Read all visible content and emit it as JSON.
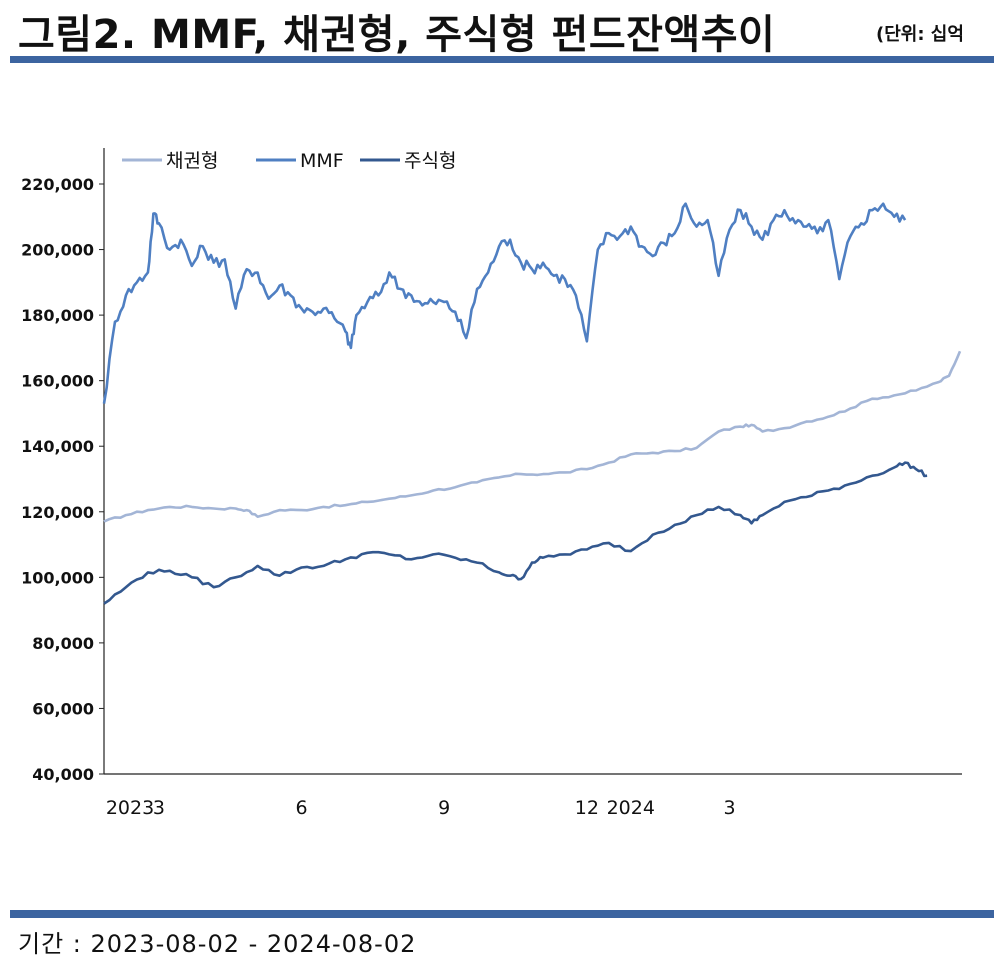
{
  "header": {
    "title": "그림2. MMF, 채권형, 주식형 펀드잔액추이",
    "unit": "(단위: 십억"
  },
  "footer": {
    "period": "기간 : 2023-08-02 - 2024-08-02"
  },
  "colors": {
    "bond": "#a3b5d6",
    "mmf": "#4f7fc2",
    "stock": "#33588f",
    "rule": "#3c64a0"
  },
  "chart_data": {
    "type": "line",
    "title": "",
    "ylim": [
      40000,
      220000
    ],
    "y_ticks": [
      "40,000",
      "60,000",
      "80,000",
      "100,000",
      "120,000",
      "140,000",
      "160,000",
      "180,000",
      "200,000",
      "220,000"
    ],
    "x_ticks": [
      "2023",
      "3",
      "6",
      "9",
      "12",
      "2024",
      "3"
    ],
    "x_tick_pos": [
      0,
      5,
      18,
      31,
      44,
      48,
      57
    ],
    "x_range": [
      0,
      78
    ],
    "legend": [
      "채권형",
      "MMF",
      "주식형"
    ],
    "legend_position": "top-left",
    "grid": false,
    "series": [
      {
        "name": "채권형",
        "points": [
          [
            0,
            117000
          ],
          [
            2,
            119000
          ],
          [
            4,
            120500
          ],
          [
            6,
            121500
          ],
          [
            8,
            121500
          ],
          [
            10,
            121000
          ],
          [
            12,
            121000
          ],
          [
            13,
            120500
          ],
          [
            14,
            118500
          ],
          [
            16,
            120500
          ],
          [
            18,
            120500
          ],
          [
            20,
            121500
          ],
          [
            22,
            122000
          ],
          [
            24,
            123000
          ],
          [
            26,
            124000
          ],
          [
            28,
            125000
          ],
          [
            30,
            126500
          ],
          [
            32,
            127500
          ],
          [
            34,
            129000
          ],
          [
            36,
            130500
          ],
          [
            38,
            131500
          ],
          [
            40,
            131500
          ],
          [
            42,
            132000
          ],
          [
            44,
            133000
          ],
          [
            46,
            135000
          ],
          [
            48,
            137500
          ],
          [
            50,
            138000
          ],
          [
            52,
            138500
          ],
          [
            54,
            139500
          ],
          [
            56,
            144500
          ],
          [
            58,
            146000
          ],
          [
            59,
            146500
          ],
          [
            60,
            144500
          ],
          [
            62,
            145500
          ],
          [
            64,
            147500
          ],
          [
            66,
            149000
          ],
          [
            68,
            151500
          ],
          [
            70,
            154500
          ],
          [
            72,
            155500
          ],
          [
            74,
            157000
          ],
          [
            76,
            159500
          ],
          [
            77,
            161500
          ],
          [
            78,
            169000
          ]
        ]
      },
      {
        "name": "MMF",
        "points": [
          [
            0,
            153000
          ],
          [
            1,
            178000
          ],
          [
            2,
            186000
          ],
          [
            3,
            190000
          ],
          [
            4,
            193000
          ],
          [
            4.5,
            211000
          ],
          [
            5,
            208000
          ],
          [
            6,
            200000
          ],
          [
            7,
            203000
          ],
          [
            8,
            195000
          ],
          [
            9,
            201000
          ],
          [
            10,
            196000
          ],
          [
            11,
            197000
          ],
          [
            12,
            182000
          ],
          [
            13,
            194000
          ],
          [
            14,
            193000
          ],
          [
            15,
            185000
          ],
          [
            16,
            189000
          ],
          [
            17,
            186000
          ],
          [
            18,
            182000
          ],
          [
            19,
            181000
          ],
          [
            20,
            182000
          ],
          [
            21,
            179000
          ],
          [
            22,
            175000
          ],
          [
            22.5,
            170000
          ],
          [
            23,
            180000
          ],
          [
            24,
            184000
          ],
          [
            25,
            186000
          ],
          [
            26,
            193000
          ],
          [
            27,
            188000
          ],
          [
            28,
            186000
          ],
          [
            29,
            183000
          ],
          [
            30,
            184000
          ],
          [
            31,
            184000
          ],
          [
            32,
            181000
          ],
          [
            33,
            173000
          ],
          [
            34,
            188000
          ],
          [
            35,
            193000
          ],
          [
            36,
            201000
          ],
          [
            37,
            203000
          ],
          [
            38,
            196000
          ],
          [
            39,
            194000
          ],
          [
            40,
            196000
          ],
          [
            41,
            192000
          ],
          [
            42,
            191000
          ],
          [
            43,
            186000
          ],
          [
            44,
            172000
          ],
          [
            45,
            200000
          ],
          [
            46,
            205000
          ],
          [
            47,
            204000
          ],
          [
            48,
            207000
          ],
          [
            49,
            201000
          ],
          [
            50,
            198000
          ],
          [
            51,
            202000
          ],
          [
            52,
            205000
          ],
          [
            53,
            214000
          ],
          [
            54,
            207000
          ],
          [
            55,
            209000
          ],
          [
            56,
            192000
          ],
          [
            57,
            206000
          ],
          [
            58,
            212000
          ],
          [
            59,
            207000
          ],
          [
            60,
            203000
          ],
          [
            61,
            209000
          ],
          [
            62,
            212000
          ],
          [
            63,
            208000
          ],
          [
            64,
            207000
          ],
          [
            65,
            205000
          ],
          [
            66,
            209000
          ],
          [
            67,
            191000
          ],
          [
            68,
            204000
          ],
          [
            69,
            208000
          ],
          [
            70,
            212000
          ],
          [
            71,
            214000
          ],
          [
            72,
            210000
          ],
          [
            73,
            209000
          ]
        ]
      },
      {
        "name": "주식형",
        "points": [
          [
            0,
            92000
          ],
          [
            2,
            97000
          ],
          [
            4,
            101500
          ],
          [
            6,
            102000
          ],
          [
            8,
            100000
          ],
          [
            10,
            97000
          ],
          [
            12,
            100000
          ],
          [
            14,
            103500
          ],
          [
            16,
            100500
          ],
          [
            18,
            103000
          ],
          [
            20,
            103500
          ],
          [
            22,
            105500
          ],
          [
            24,
            107500
          ],
          [
            26,
            107000
          ],
          [
            28,
            105500
          ],
          [
            30,
            107000
          ],
          [
            32,
            106000
          ],
          [
            34,
            104500
          ],
          [
            36,
            101500
          ],
          [
            37,
            100500
          ],
          [
            38,
            99500
          ],
          [
            39,
            104500
          ],
          [
            40,
            106000
          ],
          [
            42,
            107000
          ],
          [
            44,
            108500
          ],
          [
            46,
            110500
          ],
          [
            48,
            108000
          ],
          [
            50,
            113000
          ],
          [
            52,
            116000
          ],
          [
            54,
            119000
          ],
          [
            56,
            121500
          ],
          [
            58,
            119000
          ],
          [
            59,
            116500
          ],
          [
            60,
            119000
          ],
          [
            62,
            123000
          ],
          [
            64,
            124500
          ],
          [
            66,
            126500
          ],
          [
            68,
            128500
          ],
          [
            70,
            131000
          ],
          [
            72,
            133500
          ],
          [
            73,
            135000
          ],
          [
            74,
            133000
          ],
          [
            75,
            131000
          ]
        ]
      }
    ]
  }
}
